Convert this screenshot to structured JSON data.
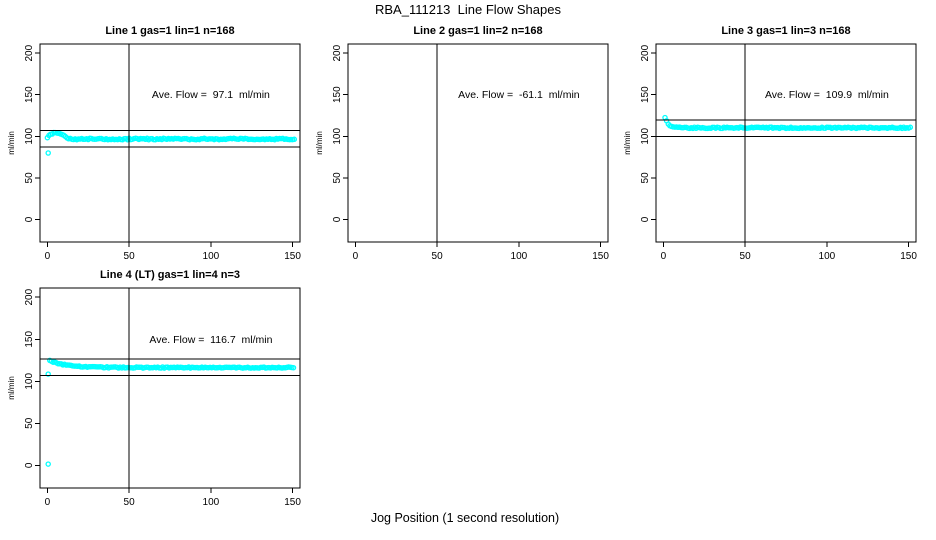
{
  "title": "RBA_111213  Line Flow Shapes",
  "xlabel": "Jog Position (1 second resolution)",
  "colors": {
    "point": "#00FFFF",
    "axis": "#000000",
    "background": "#FFFFFF"
  },
  "chart_data": [
    {
      "type": "scatter",
      "title": "Line 1 gas=1 lin=1 n=168",
      "n": 168,
      "ave_flow": 97.1,
      "ave_flow_label": "Ave. Flow =  97.1  ml/min",
      "label_pos": [
        100,
        150
      ],
      "ylabel": "ml/min",
      "xticks": [
        0,
        50,
        100,
        150
      ],
      "yticks": [
        0,
        50,
        100,
        150,
        200
      ],
      "xlim": [
        -4.5,
        154.5
      ],
      "ylim": [
        -27,
        211
      ],
      "vline_x": 50,
      "hlines": [
        107.1,
        87.1
      ],
      "series": {
        "x_start": 0,
        "x_end": 151,
        "x_step": 1,
        "steady": 96.8,
        "jitter": 0.9,
        "anchors": [
          [
            0,
            99.3
          ],
          [
            1,
            100.6
          ],
          [
            2,
            101.9
          ],
          [
            3,
            103.0
          ],
          [
            4,
            104.0
          ],
          [
            5,
            104.7
          ],
          [
            6,
            104.8
          ],
          [
            7,
            104.3
          ],
          [
            8,
            103.3
          ],
          [
            9,
            102.0
          ],
          [
            10,
            100.7
          ],
          [
            11,
            99.5
          ],
          [
            12,
            98.5
          ],
          [
            13,
            97.7
          ],
          [
            14,
            97.2
          ],
          [
            15,
            96.9
          ],
          [
            16,
            96.8
          ]
        ],
        "outliers": [
          [
            0.5,
            80
          ]
        ]
      }
    },
    {
      "type": "scatter",
      "title": "Line 2 gas=1 lin=2 n=168",
      "n": 168,
      "ave_flow": -61.1,
      "ave_flow_label": "Ave. Flow =  -61.1  ml/min",
      "label_pos": [
        100,
        150
      ],
      "ylabel": "ml/min",
      "xticks": [
        0,
        50,
        100,
        150
      ],
      "yticks": [
        0,
        50,
        100,
        150,
        200
      ],
      "xlim": [
        -4.5,
        154.5
      ],
      "ylim": [
        -27,
        211
      ],
      "vline_x": 50,
      "hlines": [],
      "series": null
    },
    {
      "type": "scatter",
      "title": "Line 3 gas=1 lin=3 n=168",
      "n": 168,
      "ave_flow": 109.9,
      "ave_flow_label": "Ave. Flow =  109.9  ml/min",
      "label_pos": [
        100,
        150
      ],
      "ylabel": "ml/min",
      "xticks": [
        0,
        50,
        100,
        150
      ],
      "yticks": [
        0,
        50,
        100,
        150,
        200
      ],
      "xlim": [
        -4.5,
        154.5
      ],
      "ylim": [
        -27,
        211
      ],
      "vline_x": 50,
      "hlines": [
        119.9,
        99.9
      ],
      "series": {
        "x_start": 1,
        "x_end": 151,
        "x_step": 1,
        "steady": 110.3,
        "jitter": 0.8,
        "anchors": [
          [
            1,
            121.8
          ],
          [
            2,
            118.0
          ],
          [
            3,
            115.0
          ],
          [
            4,
            113.0
          ],
          [
            5,
            111.9
          ],
          [
            6,
            111.2
          ],
          [
            7,
            110.8
          ],
          [
            9,
            110.5
          ],
          [
            12,
            110.3
          ]
        ],
        "outliers": []
      }
    },
    {
      "type": "scatter",
      "title": "Line 4 (LT) gas=1 lin=4 n=3",
      "n": 3,
      "ave_flow": 116.7,
      "ave_flow_label": "Ave. Flow =  116.7  ml/min",
      "label_pos": [
        100,
        150
      ],
      "ylabel": "ml/min",
      "xticks": [
        0,
        50,
        100,
        150
      ],
      "yticks": [
        0,
        50,
        100,
        150,
        200
      ],
      "xlim": [
        -4.5,
        154.5
      ],
      "ylim": [
        -27,
        211
      ],
      "vline_x": 50,
      "hlines": [
        126.7,
        106.7
      ],
      "series": {
        "x_start": 1.5,
        "x_end": 151,
        "x_step": 1,
        "steady": 116.3,
        "jitter": 0.7,
        "anchors": [
          [
            1.5,
            124.9
          ],
          [
            2,
            124.6
          ],
          [
            3,
            123.7
          ],
          [
            4,
            122.9
          ],
          [
            5,
            122.2
          ],
          [
            6,
            121.6
          ],
          [
            7,
            121.1
          ],
          [
            8,
            120.7
          ],
          [
            10,
            119.9
          ],
          [
            12,
            119.3
          ],
          [
            14,
            118.8
          ],
          [
            17,
            118.2
          ],
          [
            20,
            117.7
          ],
          [
            24,
            117.3
          ],
          [
            28,
            117.0
          ],
          [
            33,
            116.7
          ],
          [
            40,
            116.5
          ],
          [
            50,
            116.4
          ],
          [
            60,
            116.3
          ]
        ],
        "outliers": [
          [
            0.5,
            1.5
          ],
          [
            0.5,
            108.5
          ]
        ]
      }
    }
  ]
}
